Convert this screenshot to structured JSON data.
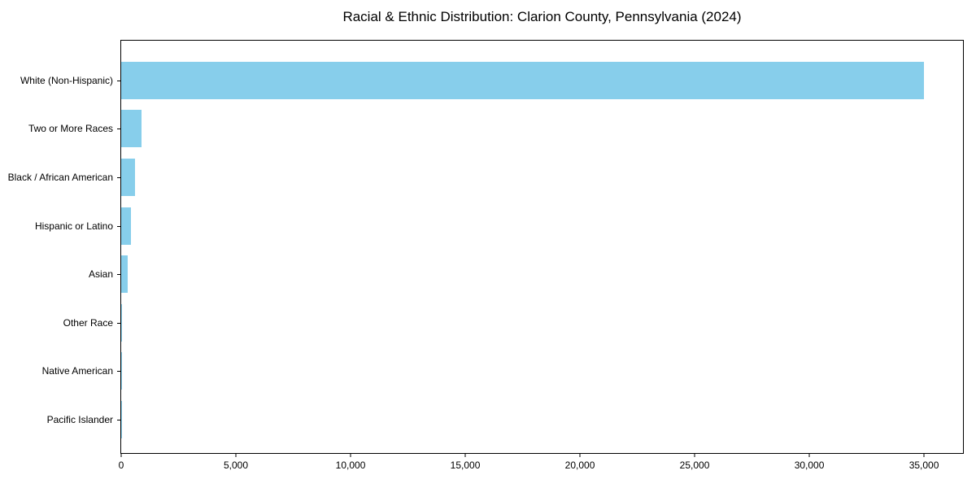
{
  "chart_data": {
    "type": "bar",
    "orientation": "horizontal",
    "title": "Racial & Ethnic Distribution: Clarion County, Pennsylvania (2024)",
    "categories": [
      "White (Non-Hispanic)",
      "Two or More Races",
      "Black / African American",
      "Hispanic or Latino",
      "Asian",
      "Other Race",
      "Native American",
      "Pacific Islander"
    ],
    "values": [
      35000,
      900,
      600,
      430,
      270,
      50,
      30,
      10
    ],
    "xlabel": "",
    "ylabel": "",
    "xlim": [
      0,
      36700
    ],
    "x_ticks": [
      0,
      5000,
      10000,
      15000,
      20000,
      25000,
      30000,
      35000
    ],
    "x_tick_labels": [
      "0",
      "5,000",
      "10,000",
      "15,000",
      "20,000",
      "25,000",
      "30,000",
      "35,000"
    ],
    "bar_color": "#87CEEB",
    "spine_color": "#000000",
    "grid": false,
    "legend": null
  }
}
